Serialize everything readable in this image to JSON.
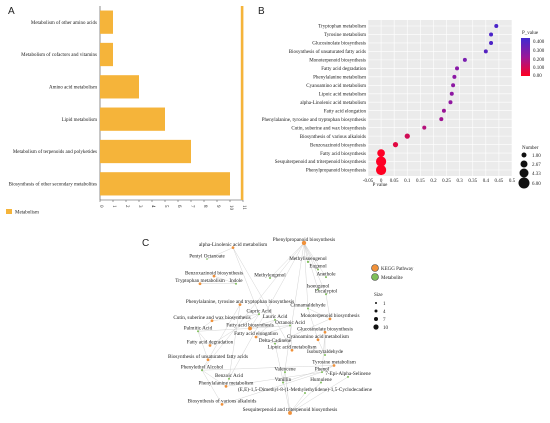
{
  "panels": {
    "a": "A",
    "b": "B",
    "c": "C"
  },
  "chart_data": [
    {
      "type": "bar",
      "orientation": "horizontal",
      "categories": [
        "Metabolism of other amino acids",
        "Metabolism of cofactors and vitamins",
        "Amino acid metabolism",
        "Lipid metabolism",
        "Metabolism of terpenoids and polyketides",
        "Biosynthesis of other secondary metabolites"
      ],
      "values": [
        1,
        1,
        3,
        5,
        7,
        10
      ],
      "extra_bar_value": 11,
      "xlim": [
        0,
        11
      ],
      "xticks": [
        "0",
        "1",
        "2",
        "3",
        "4",
        "5",
        "6",
        "7",
        "8",
        "9",
        "10",
        "11"
      ],
      "legend": [
        "Metabolism"
      ],
      "legend_position": "bottom-left",
      "color": "#f5b43a"
    },
    {
      "type": "scatter",
      "categories": [
        "Tryptophan metabolism",
        "Tyrosine metabolism",
        "Glucosinolate biosynthesis",
        "Biosynthesis of unsaturated fatty acids",
        "Monoterpenoid biosynthesis",
        "Fatty acid degradation",
        "Phenylalanine metabolism",
        "Cyanoamino acid metabolism",
        "Lipoic acid metabolism",
        "alpha-Linolenic acid metabolism",
        "Fatty acid elongation",
        "Phenylalanine, tyrosine and tryptophan biosynthesis",
        "Cutin, suberine and wax biosynthesis",
        "Biosynthesis of various alkaloids",
        "Benzoxazinoid biosynthesis",
        "Fatty acid biosynthesis",
        "Sesquiterpenoid and triterpenoid biosynthesis",
        "Phenylpropanoid biosynthesis"
      ],
      "x": [
        0.44,
        0.42,
        0.42,
        0.4,
        0.32,
        0.29,
        0.28,
        0.275,
        0.27,
        0.265,
        0.24,
        0.23,
        0.165,
        0.1,
        0.055,
        0.0,
        0.0,
        0.0
      ],
      "number": [
        1,
        1,
        1,
        1,
        1,
        1,
        1,
        1,
        1,
        1,
        1,
        1,
        1,
        2,
        2,
        4,
        6,
        6
      ],
      "color": [
        "#4a23c9",
        "#4a23c9",
        "#4c22c6",
        "#5522c0",
        "#7a1fb0",
        "#8a1aa8",
        "#8c19a5",
        "#8d18a3",
        "#8e18a2",
        "#9017a0",
        "#9a1596",
        "#9f1492",
        "#b5117b",
        "#d00c55",
        "#e20842",
        "#ff0026",
        "#ff0026",
        "#ff0022"
      ],
      "xlabel": "P value",
      "xticks": [
        "-0.05",
        "0",
        "0.05",
        "0.1",
        "0.15",
        "0.2",
        "0.25",
        "0.3",
        "0.35",
        "0.4",
        "0.45",
        "0.5"
      ],
      "xlim": [
        -0.05,
        0.5
      ],
      "colorbar": {
        "title": "P_value",
        "ticks": [
          "0.400",
          "0.300",
          "0.200",
          "0.100",
          "0.00"
        ]
      },
      "size_legend": {
        "title": "Number",
        "values": [
          "1.00",
          "2.67",
          "4.33",
          "6.00"
        ]
      }
    }
  ],
  "network": {
    "legend": {
      "pathway": "KEGG Pathway",
      "metabolite": "Metabolite",
      "size_title": "Size",
      "sizes": [
        "1",
        "4",
        "7",
        "10"
      ]
    },
    "labels": [
      "Phenylpropanoid biosynthesis",
      "alpha-Linolenic acid metabolism",
      "Methylisoeugenol",
      "Pentyl Octanoate",
      "Eugenol",
      "Methyleugenol",
      "Anethole",
      "Benzoxazinoid biosynthesis",
      "Isoeugenol",
      "Tryptophan metabolism",
      "Indole",
      "Eucalyptol",
      "Cinnamaldehyde",
      "Phenylalanine, tyrosine and tryptophan biosynthesis",
      "Capric Acid",
      "Cutin, suberine and wax biosynthesis",
      "Lauric Acid",
      "Monoterpenoid biosynthesis",
      "Fatty acid biosynthesis",
      "Octanoic Acid",
      "Palmitic Acid",
      "Glucosinolate biosynthesis",
      "Fatty acid elongation",
      "Cyanoamino acid metabolism",
      "Delta-Cadinene",
      "Fatty acid degradation",
      "Lipoic acid metabolism",
      "Isobutyraldehyde",
      "Biosynthesis of unsaturated fatty acids",
      "Phenylethyl Alcohol",
      "Tyrosine metabolism",
      "Valencene",
      "Phenol",
      "7-Epi-Alpha-Selinene",
      "Benzoic Acid",
      "Vanillin",
      "Humulene",
      "Phenylalanine metabolism",
      "(E,E)-1,5-Dimethyl-8-(1-Methylethylidene)-1,5-Cyclodecadiene",
      "Biosynthesis of various alkaloids",
      "Sesquiterpenoid and triterpenoid biosynthesis"
    ]
  }
}
